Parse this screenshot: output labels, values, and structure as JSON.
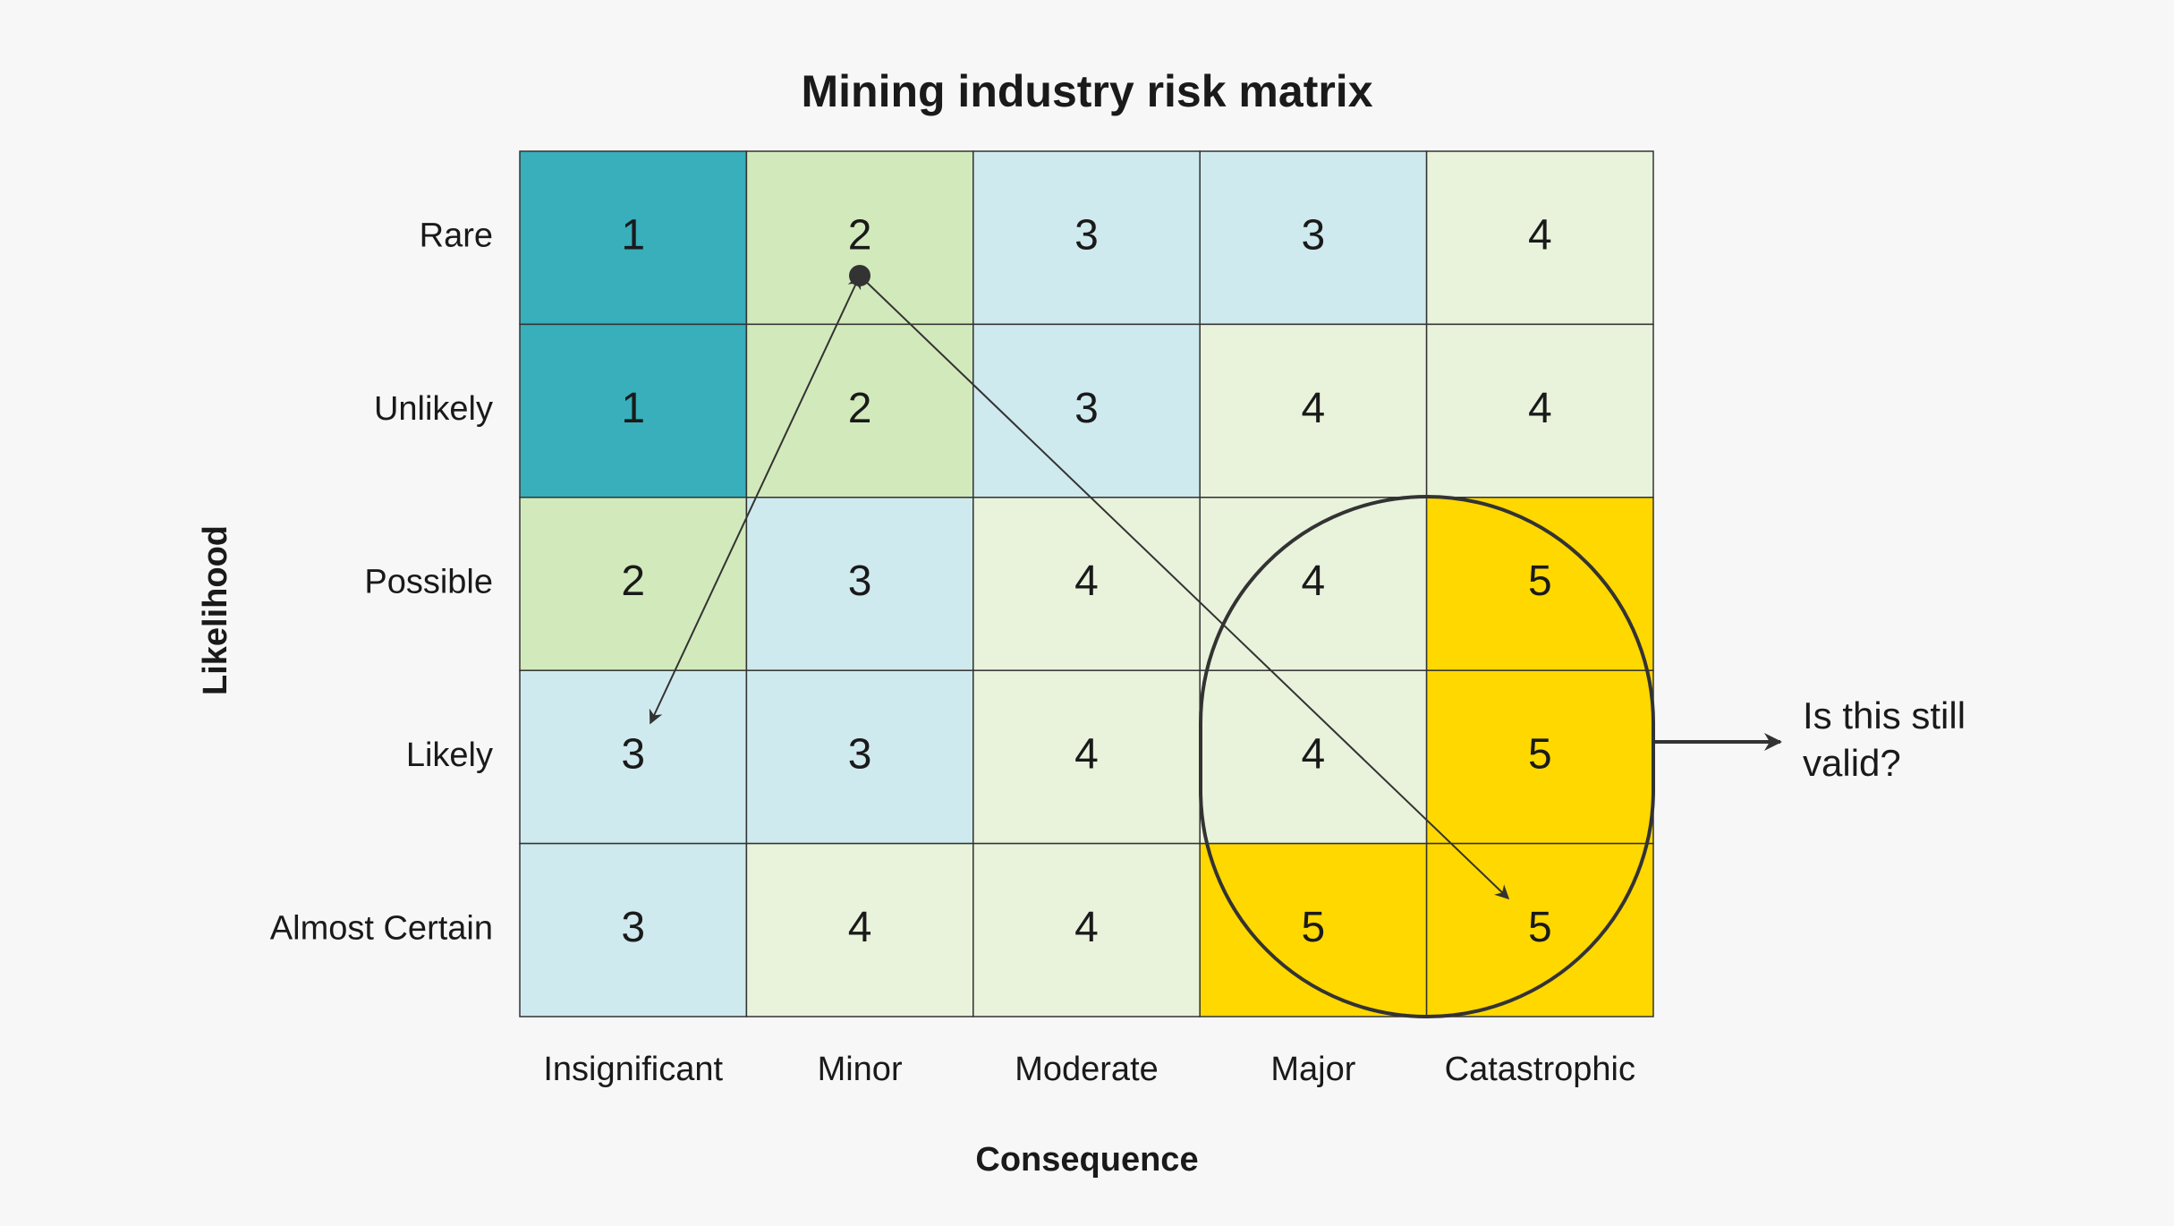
{
  "title": "Mining industry risk matrix",
  "x_label": "Consequence",
  "y_label": "Likelihood",
  "columns": [
    "Insignificant",
    "Minor",
    "Moderate",
    "Major",
    "Catastrophic"
  ],
  "rows": [
    "Rare",
    "Unlikely",
    "Possible",
    "Likely",
    "Almost Certain"
  ],
  "cells": [
    [
      1,
      2,
      3,
      3,
      4
    ],
    [
      1,
      2,
      3,
      4,
      4
    ],
    [
      2,
      3,
      4,
      4,
      5
    ],
    [
      3,
      3,
      4,
      4,
      5
    ],
    [
      3,
      4,
      4,
      5,
      5
    ]
  ],
  "annotation": [
    "Is this still",
    "valid?"
  ]
}
